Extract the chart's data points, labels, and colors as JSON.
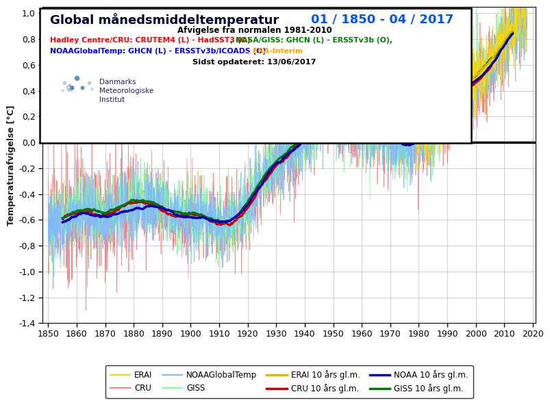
{
  "title_main": "Global månedsmiddeltemperatur ",
  "title_dates": "01 / 1850 - 04 / 2017",
  "subtitle1": "Afvigelse fra normalen 1981-2010",
  "subtitle2_part1_red": "Hadley Centre/CRU: CRUTEM4 (L) - HadSST3 (O)",
  "subtitle2_part2_green": ", NASA/GISS: GHCN (L) - ERSSTv3b (O),",
  "subtitle3_part1_blue": "NOAAGlobalTemp: GHCN (L) - ERSSTv3b/ICOADS (O)",
  "subtitle3_part2_orange": ", ERA-Interim",
  "subtitle4": "Sidst opdateret: 13/06/2017",
  "ylabel": "Temperaturafvigelse [°C]",
  "xlim": [
    1848,
    2021
  ],
  "ylim": [
    -1.4,
    1.05
  ],
  "yticks": [
    -1.4,
    -1.2,
    -1.0,
    -0.8,
    -0.6,
    -0.4,
    -0.2,
    0.0,
    0.2,
    0.4,
    0.6,
    0.8,
    1.0
  ],
  "xticks": [
    1850,
    1860,
    1870,
    1880,
    1890,
    1900,
    1910,
    1920,
    1930,
    1940,
    1950,
    1960,
    1970,
    1980,
    1990,
    2000,
    2010,
    2020
  ],
  "color_cru_raw": "#FF8080",
  "color_cru_smooth": "#CC0000",
  "color_giss_raw": "#80FF99",
  "color_giss_smooth": "#007700",
  "color_noaa_raw": "#80BBFF",
  "color_noaa_smooth": "#0000BB",
  "color_erai_raw": "#FFD700",
  "color_erai_smooth": "#DDBB00",
  "color_zero_line": "#000000",
  "title_color_main": "#000033",
  "title_color_dates": "#0055FF",
  "background_color": "#FFFFFF",
  "grid_color": "#AAAAAA",
  "legend_items_raw": [
    "ERAI",
    "CRU",
    "NOAAGlobalTemp",
    "GISS"
  ],
  "legend_items_smooth": [
    "ERAI 10 års gl.m.",
    "CRU 10 års gl.m.",
    "NOAA 10 års gl.m.",
    "GISS 10 års gl.m."
  ],
  "legend_colors_raw": [
    "#FFD700",
    "#FF8080",
    "#80BBFF",
    "#80FF99"
  ],
  "legend_colors_smooth": [
    "#DDBB00",
    "#CC0000",
    "#0000BB",
    "#007700"
  ]
}
